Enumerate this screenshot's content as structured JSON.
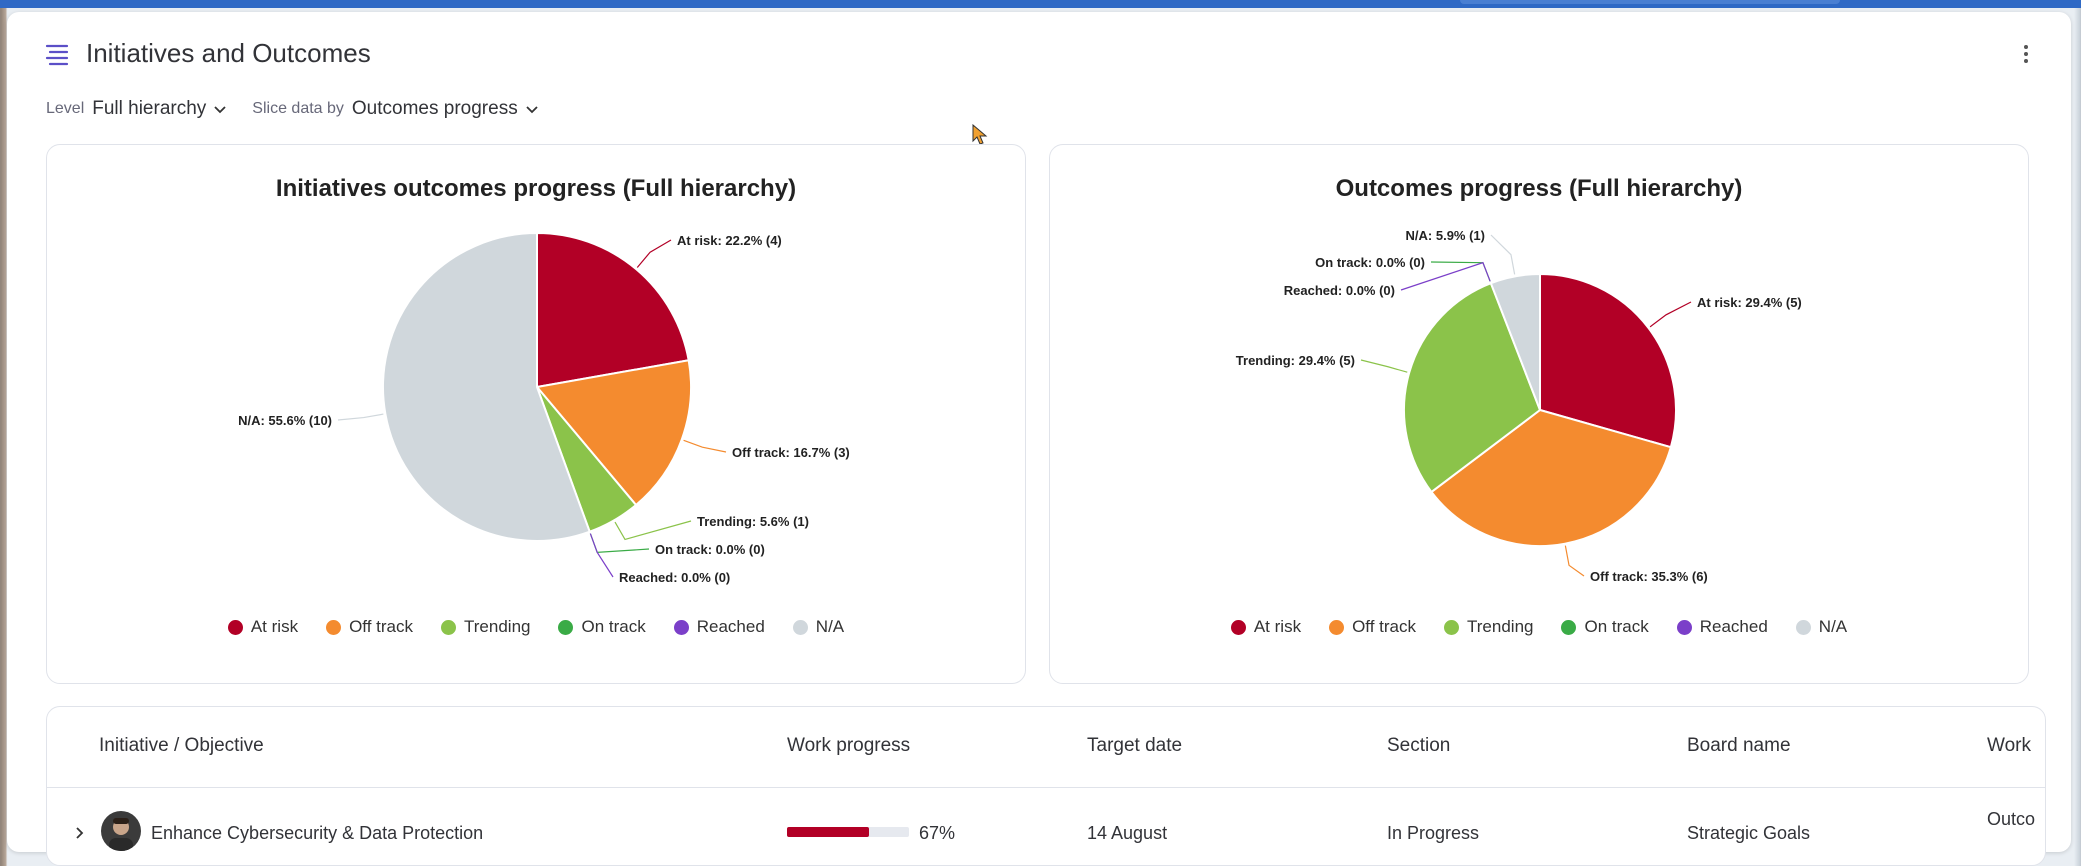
{
  "header": {
    "title": "Initiatives and Outcomes",
    "icon": "hierarchy-icon"
  },
  "filters": {
    "level_label": "Level",
    "level_value": "Full hierarchy",
    "slice_label": "Slice data by",
    "slice_value": "Outcomes progress"
  },
  "colors": {
    "at_risk": "#b20026",
    "off_track": "#f48b2f",
    "trending": "#8bc34a",
    "on_track": "#3aab46",
    "reached": "#7b3fc9",
    "na": "#d0d7dc"
  },
  "legend": [
    "At risk",
    "Off track",
    "Trending",
    "On track",
    "Reached",
    "N/A"
  ],
  "chart_data": [
    {
      "type": "pie",
      "title": "Initiatives outcomes progress (Full hierarchy)",
      "slices": [
        {
          "name": "At risk",
          "count": 4,
          "label": "At risk: 22.2% (4)"
        },
        {
          "name": "Off track",
          "count": 3,
          "label": "Off track: 16.7% (3)"
        },
        {
          "name": "Trending",
          "count": 1,
          "label": "Trending: 5.6% (1)"
        },
        {
          "name": "On track",
          "count": 0,
          "label": "On track: 0.0% (0)"
        },
        {
          "name": "Reached",
          "count": 0,
          "label": "Reached: 0.0% (0)"
        },
        {
          "name": "N/A",
          "count": 10,
          "label": "N/A: 55.6% (10)"
        }
      ]
    },
    {
      "type": "pie",
      "title": "Outcomes progress (Full hierarchy)",
      "slices": [
        {
          "name": "At risk",
          "count": 5,
          "label": "At risk: 29.4% (5)"
        },
        {
          "name": "Off track",
          "count": 6,
          "label": "Off track: 35.3% (6)"
        },
        {
          "name": "Trending",
          "count": 5,
          "label": "Trending: 29.4% (5)"
        },
        {
          "name": "On track",
          "count": 0,
          "label": "On track: 0.0% (0)"
        },
        {
          "name": "Reached",
          "count": 0,
          "label": "Reached: 0.0% (0)"
        },
        {
          "name": "N/A",
          "count": 1,
          "label": "N/A: 5.9% (1)"
        }
      ]
    }
  ],
  "table": {
    "columns": [
      "Initiative / Objective",
      "Work progress",
      "Target date",
      "Section",
      "Board name",
      "Work"
    ],
    "rows": [
      {
        "name": "Enhance Cybersecurity & Data Protection",
        "progress": 67,
        "progress_label": "67%",
        "target_date": "14 August",
        "section": "In Progress",
        "board": "Strategic Goals",
        "work": "Outco"
      }
    ]
  }
}
